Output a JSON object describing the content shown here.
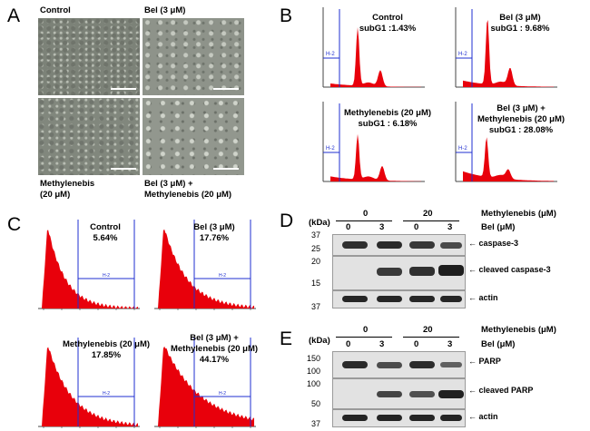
{
  "panel_letters": {
    "a": "A",
    "b": "B",
    "c": "C",
    "d": "D",
    "e": "E"
  },
  "panelA": {
    "labels": {
      "tl": "Control",
      "tr": "Bel (3 μM)",
      "bl1": "Methylenebis",
      "bl2": "(20 μM)",
      "br1": "Bel (3 μM) +",
      "br2": "Methylenebis (20 μM)"
    }
  },
  "panelB": {
    "gate_label": "H-2",
    "plots": [
      {
        "line1": "Control",
        "line2": "subG1 :1.43%",
        "subg1": 1.43
      },
      {
        "line1": "Bel (3 μM)",
        "line2": "subG1 : 9.68%",
        "subg1": 9.68
      },
      {
        "line1": "Methylenebis (20 μM)",
        "line2": "subG1 : 6.18%",
        "subg1": 6.18
      },
      {
        "line1": "Bel (3 μM) +",
        "line2": "Methylenebis (20 μM)",
        "line3": "subG1 : 28.08%",
        "subg1": 28.08
      }
    ]
  },
  "panelC": {
    "gate_label": "H-2",
    "plots": [
      {
        "line1": "Control",
        "line2": "5.64%",
        "value": 5.64
      },
      {
        "line1": "Bel (3 μM)",
        "line2": "17.76%",
        "value": 17.76
      },
      {
        "line1": "Methylenebis (20 μM)",
        "line2": "17.85%",
        "value": 17.85
      },
      {
        "line1": "Bel (3 μM) +",
        "line2": "Methylenebis (20 μM)",
        "line3": "44.17%",
        "value": 44.17
      }
    ]
  },
  "panelD": {
    "methylenebis_label": "Methylenebis (μM)",
    "bel_label": "Bel (μM)",
    "kda": "(kDa)",
    "meth_doses": [
      "0",
      "20"
    ],
    "bel_doses": [
      "0",
      "3",
      "0",
      "3"
    ],
    "markers": [
      "37",
      "25",
      "20",
      "15",
      "37"
    ],
    "bands": [
      "caspase-3",
      "cleaved caspase-3",
      "actin"
    ]
  },
  "panelE": {
    "methylenebis_label": "Methylenebis (μM)",
    "bel_label": "Bel (μM)",
    "kda": "(kDa)",
    "meth_doses": [
      "0",
      "20"
    ],
    "bel_doses": [
      "0",
      "3",
      "0",
      "3"
    ],
    "markers": [
      "150",
      "100",
      "100",
      "50",
      "37"
    ],
    "bands": [
      "PARP",
      "cleaved PARP",
      "actin"
    ]
  },
  "colors": {
    "histogram": "#e8000b",
    "gate": "#1f2fd0"
  }
}
